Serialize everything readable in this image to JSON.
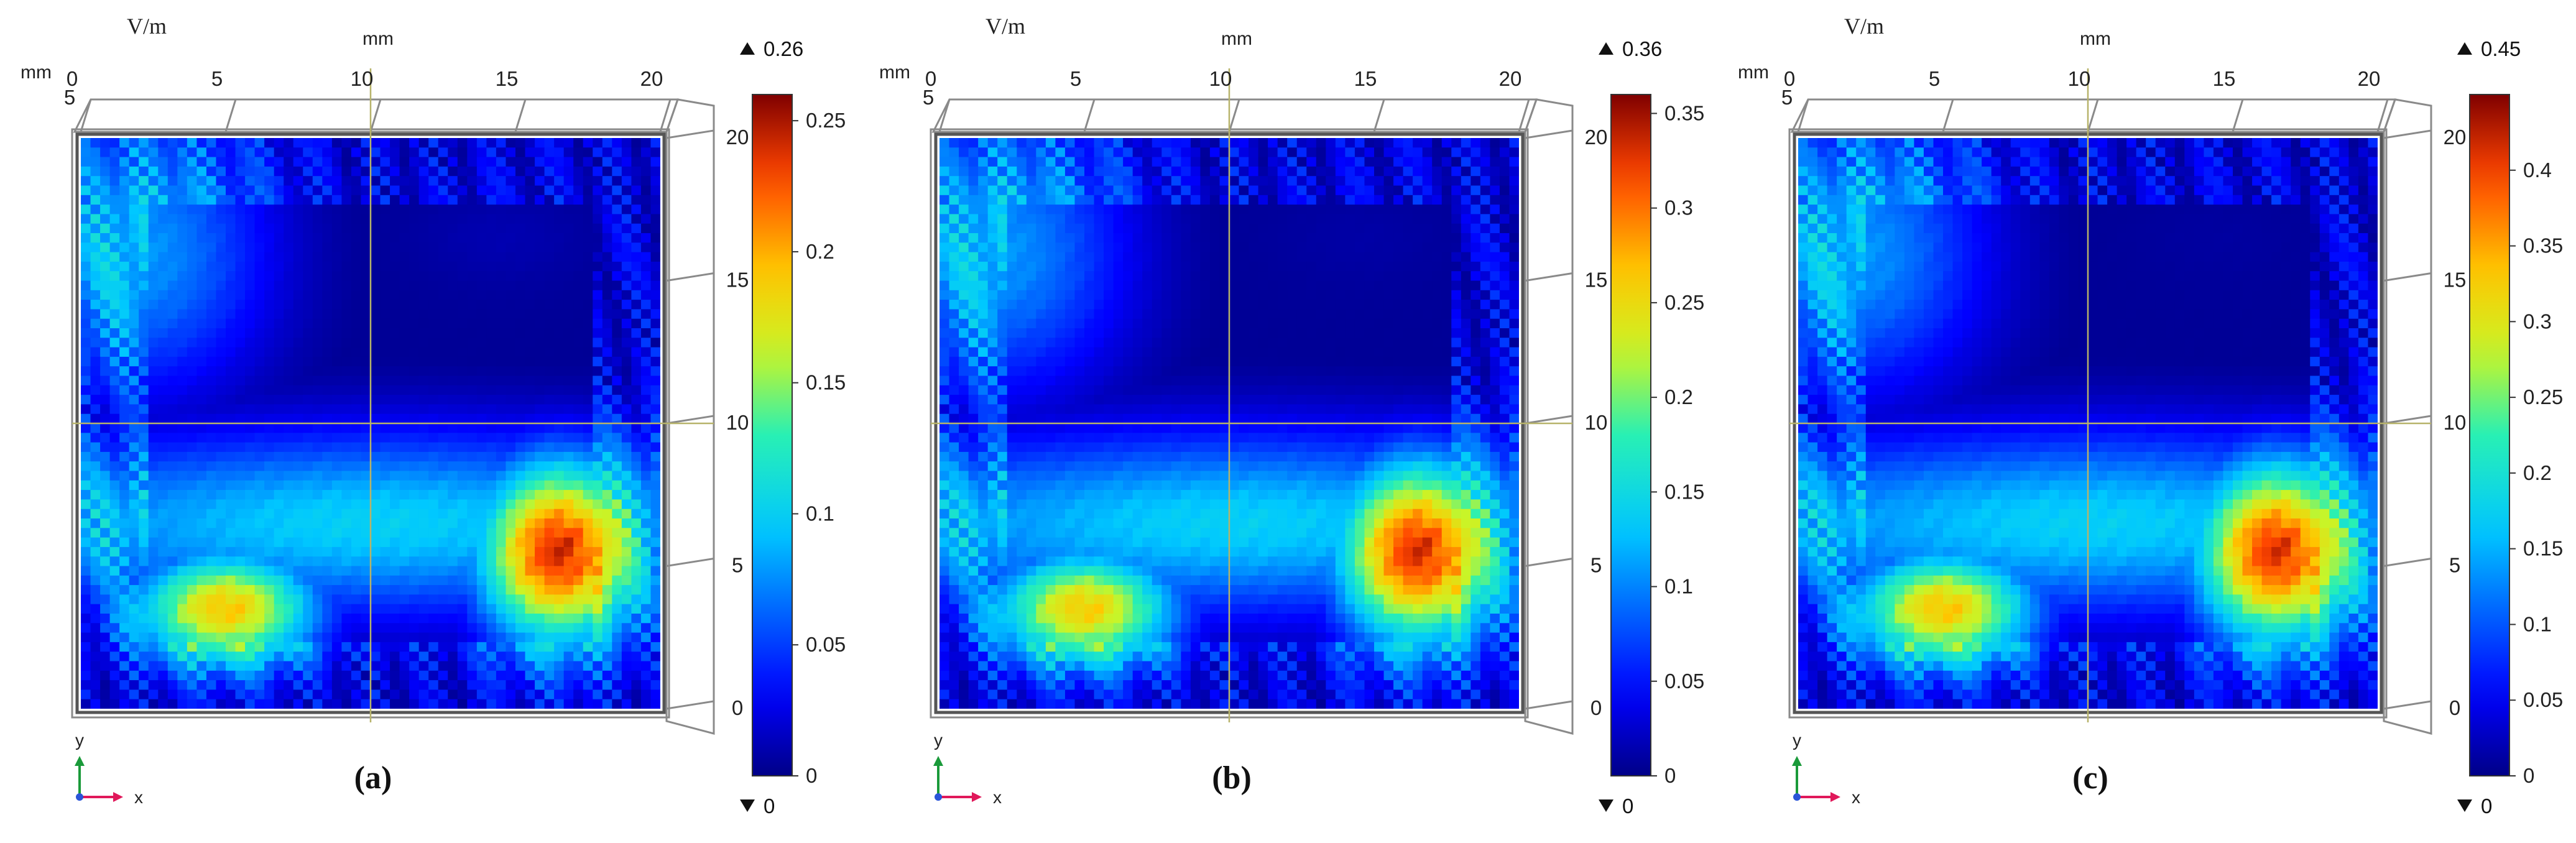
{
  "chart_data": [
    {
      "type": "heatmap",
      "caption": "(a)",
      "units": {
        "colorbar": "V/m",
        "axis": "mm"
      },
      "x_ticks": [
        "0",
        "5",
        "10",
        "15",
        "20"
      ],
      "y_ticks": [
        "0",
        "5",
        "10",
        "15",
        "20"
      ],
      "top_left_tick": "5",
      "xlim": [
        0,
        20
      ],
      "ylim": [
        0,
        20
      ],
      "colorbar": {
        "max_label": "0.26",
        "min_label": "0",
        "ticks": [
          "0",
          "0.05",
          "0.1",
          "0.15",
          "0.2",
          "0.25"
        ],
        "tick_values": [
          0,
          0.05,
          0.1,
          0.15,
          0.2,
          0.25
        ],
        "range": [
          0,
          0.26
        ],
        "colormap": "rainbow (blue to red)"
      },
      "hotspots": [
        {
          "x_mm": 16.5,
          "y_mm": 5.5,
          "value": 0.24
        },
        {
          "x_mm": 5,
          "y_mm": 3.5,
          "value": 0.19
        }
      ],
      "coldspots": [
        {
          "x_mm": 14.5,
          "y_mm": 16.5,
          "value": 0.01
        }
      ],
      "axis_triad": {
        "y": "y",
        "x": "x",
        "z": "z"
      }
    },
    {
      "type": "heatmap",
      "caption": "(b)",
      "units": {
        "colorbar": "V/m",
        "axis": "mm"
      },
      "x_ticks": [
        "0",
        "5",
        "10",
        "15",
        "20"
      ],
      "y_ticks": [
        "0",
        "5",
        "10",
        "15",
        "20"
      ],
      "top_left_tick": "5",
      "xlim": [
        0,
        20
      ],
      "ylim": [
        0,
        20
      ],
      "colorbar": {
        "max_label": "0.36",
        "min_label": "0",
        "ticks": [
          "0",
          "0.05",
          "0.1",
          "0.15",
          "0.2",
          "0.25",
          "0.3",
          "0.35"
        ],
        "tick_values": [
          0,
          0.05,
          0.1,
          0.15,
          0.2,
          0.25,
          0.3,
          0.35
        ],
        "range": [
          0,
          0.36
        ],
        "colormap": "rainbow (blue to red)"
      },
      "hotspots": [
        {
          "x_mm": 16.5,
          "y_mm": 5.5,
          "value": 0.33
        },
        {
          "x_mm": 5,
          "y_mm": 3.5,
          "value": 0.26
        }
      ],
      "coldspots": [
        {
          "x_mm": 14.5,
          "y_mm": 16.5,
          "value": 0.01
        }
      ],
      "axis_triad": {
        "y": "y",
        "x": "x",
        "z": "z"
      }
    },
    {
      "type": "heatmap",
      "caption": "(c)",
      "units": {
        "colorbar": "V/m",
        "axis": "mm"
      },
      "x_ticks": [
        "0",
        "5",
        "10",
        "15",
        "20"
      ],
      "y_ticks": [
        "0",
        "5",
        "10",
        "15",
        "20"
      ],
      "top_left_tick": "5",
      "xlim": [
        0,
        20
      ],
      "ylim": [
        0,
        20
      ],
      "colorbar": {
        "max_label": "0.45",
        "min_label": "0",
        "ticks": [
          "0",
          "0.05",
          "0.1",
          "0.15",
          "0.2",
          "0.25",
          "0.3",
          "0.35",
          "0.4"
        ],
        "tick_values": [
          0,
          0.05,
          0.1,
          0.15,
          0.2,
          0.25,
          0.3,
          0.35,
          0.4
        ],
        "range": [
          0,
          0.45
        ],
        "colormap": "rainbow (blue to red)"
      },
      "hotspots": [
        {
          "x_mm": 16.5,
          "y_mm": 5.5,
          "value": 0.41
        },
        {
          "x_mm": 5,
          "y_mm": 3.5,
          "value": 0.33
        }
      ],
      "coldspots": [
        {
          "x_mm": 14.5,
          "y_mm": 16.5,
          "value": 0.01
        }
      ],
      "axis_triad": {
        "y": "y",
        "x": "x",
        "z": "z"
      }
    }
  ],
  "colors": {
    "frame": "#8a8a8a",
    "grid_line": "#b7b36a",
    "axis_y_arrow": "#1a9a3a",
    "axis_x_arrow": "#e0185a",
    "axis_z_dot": "#2a55d8"
  }
}
